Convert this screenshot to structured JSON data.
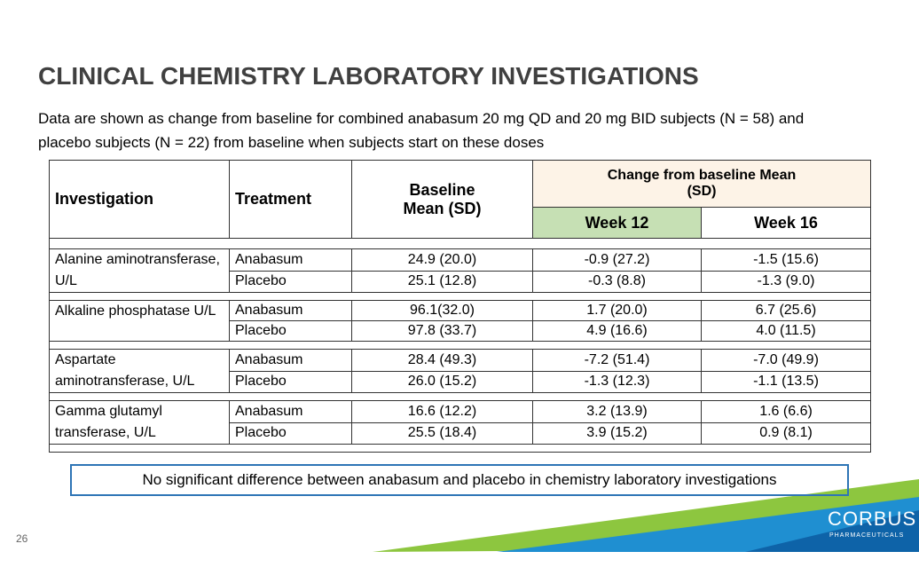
{
  "title": "CLINICAL CHEMISTRY LABORATORY INVESTIGATIONS",
  "subtitle": "Data are shown as change from baseline for combined anabasum 20 mg QD and 20 mg BID subjects (N = 58) and placebo subjects (N = 22) from baseline when subjects start on these doses",
  "table": {
    "headers": {
      "investigation": "Investigation",
      "treatment": "Treatment",
      "baseline": "Baseline Mean (SD)",
      "change": "Change from baseline Mean (SD)",
      "week12": "Week 12",
      "week16": "Week 16"
    },
    "groups": [
      {
        "investigation": "Alanine aminotransferase, U/L",
        "rows": [
          [
            "Anabasum",
            "24.9 (20.0)",
            "-0.9 (27.2)",
            "-1.5 (15.6)"
          ],
          [
            "Placebo",
            "25.1 (12.8)",
            "-0.3 (8.8)",
            "-1.3 (9.0)"
          ]
        ]
      },
      {
        "investigation": "Alkaline phosphatase U/L",
        "rows": [
          [
            "Anabasum",
            "96.1(32.0)",
            "1.7 (20.0)",
            "6.7 (25.6)"
          ],
          [
            "Placebo",
            "97.8 (33.7)",
            "4.9 (16.6)",
            "4.0 (11.5)"
          ]
        ]
      },
      {
        "investigation": "Aspartate aminotransferase, U/L",
        "rows": [
          [
            "Anabasum",
            "28.4 (49.3)",
            "-7.2 (51.4)",
            "-7.0 (49.9)"
          ],
          [
            "Placebo",
            "26.0 (15.2)",
            "-1.3 (12.3)",
            "-1.1 (13.5)"
          ]
        ]
      },
      {
        "investigation": "Gamma glutamyl transferase, U/L",
        "rows": [
          [
            "Anabasum",
            "16.6 (12.2)",
            "3.2 (13.9)",
            "1.6 (6.6)"
          ],
          [
            "Placebo",
            "25.5 (18.4)",
            "3.9 (15.2)",
            "0.9 (8.1)"
          ]
        ]
      }
    ]
  },
  "note": "No significant difference between anabasum and placebo in chemistry laboratory investigations",
  "page_number": "26",
  "logo": {
    "name": "CORBUS",
    "tagline": "PHARMACEUTICALS"
  }
}
